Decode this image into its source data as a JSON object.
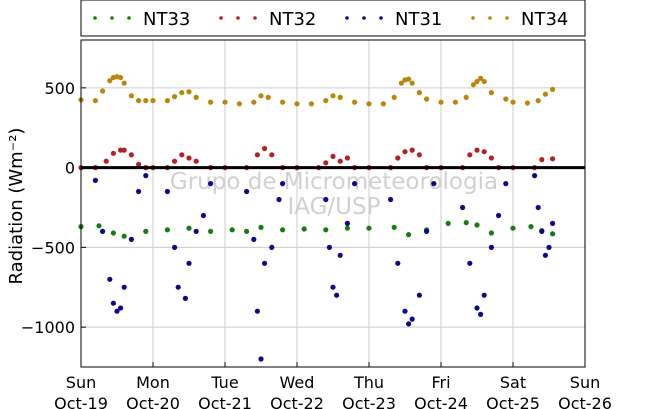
{
  "chart_data": {
    "type": "scatter",
    "title": "",
    "xlabel": "",
    "ylabel": "Radiation (Wm⁻²)",
    "xlim": [
      0,
      7
    ],
    "ylim": [
      -1250,
      800
    ],
    "grid": true,
    "legend_position": "top",
    "yticks": [
      {
        "value": 500,
        "label": "500"
      },
      {
        "value": 0,
        "label": "0"
      },
      {
        "value": -500,
        "label": "−500"
      },
      {
        "value": -1000,
        "label": "−1000"
      }
    ],
    "xticks": [
      {
        "value": 0,
        "day": "Sun",
        "date": "Oct-19"
      },
      {
        "value": 1,
        "day": "Mon",
        "date": "Oct-20"
      },
      {
        "value": 2,
        "day": "Tue",
        "date": "Oct-21"
      },
      {
        "value": 3,
        "day": "Wed",
        "date": "Oct-22"
      },
      {
        "value": 4,
        "day": "Thu",
        "date": "Oct-23"
      },
      {
        "value": 5,
        "day": "Fri",
        "date": "Oct-24"
      },
      {
        "value": 6,
        "day": "Sat",
        "date": "Oct-25"
      },
      {
        "value": 7,
        "day": "Sun",
        "date": "Oct-26"
      }
    ],
    "zero_line": 0,
    "watermark": [
      "Grupo de Micrometeorologia",
      "IAG/USP"
    ],
    "series": [
      {
        "name": "NT33",
        "color": "#1a7a14",
        "x": [
          0.0,
          0.25,
          0.45,
          0.6,
          0.9,
          1.2,
          1.5,
          1.8,
          2.1,
          2.3,
          2.5,
          2.8,
          3.1,
          3.4,
          3.7,
          4.0,
          4.35,
          4.55,
          4.8,
          5.1,
          5.35,
          5.5,
          5.7,
          6.0,
          6.25,
          6.4,
          6.55
        ],
        "y": [
          -370,
          -365,
          -410,
          -430,
          -400,
          -390,
          -380,
          -400,
          -390,
          -400,
          -375,
          -390,
          -385,
          -390,
          -380,
          -380,
          -375,
          -420,
          -390,
          -350,
          -345,
          -360,
          -410,
          -380,
          -370,
          -395,
          -415
        ]
      },
      {
        "name": "NT32",
        "color": "#b22222",
        "x": [
          0.0,
          0.2,
          0.35,
          0.45,
          0.55,
          0.6,
          0.7,
          0.8,
          0.9,
          1.0,
          1.2,
          1.3,
          1.4,
          1.5,
          1.6,
          1.8,
          2.0,
          2.3,
          2.45,
          2.55,
          2.65,
          2.8,
          3.0,
          3.3,
          3.4,
          3.5,
          3.6,
          3.7,
          3.8,
          4.0,
          4.3,
          4.4,
          4.5,
          4.6,
          4.7,
          4.8,
          5.0,
          5.3,
          5.4,
          5.5,
          5.6,
          5.7,
          5.8,
          6.0,
          6.3,
          6.4,
          6.55
        ],
        "y": [
          0,
          0,
          40,
          90,
          110,
          110,
          80,
          20,
          0,
          0,
          0,
          40,
          80,
          60,
          40,
          0,
          0,
          0,
          80,
          120,
          80,
          0,
          0,
          0,
          30,
          70,
          40,
          60,
          0,
          0,
          0,
          60,
          100,
          110,
          80,
          0,
          0,
          0,
          80,
          110,
          100,
          60,
          0,
          0,
          0,
          50,
          55
        ]
      },
      {
        "name": "NT31",
        "color": "#0a0a8a",
        "x": [
          0.2,
          0.3,
          0.4,
          0.45,
          0.5,
          0.55,
          0.6,
          0.7,
          0.8,
          0.9,
          1.2,
          1.3,
          1.35,
          1.45,
          1.5,
          1.6,
          1.7,
          1.8,
          2.3,
          2.4,
          2.45,
          2.5,
          2.55,
          2.65,
          2.75,
          2.8,
          3.4,
          3.45,
          3.5,
          3.55,
          3.6,
          3.7,
          3.8,
          4.3,
          4.4,
          4.5,
          4.55,
          4.6,
          4.7,
          4.8,
          4.9,
          5.3,
          5.4,
          5.5,
          5.55,
          5.6,
          5.7,
          5.8,
          5.9,
          6.3,
          6.35,
          6.4,
          6.45,
          6.5,
          6.55
        ],
        "y": [
          -80,
          -400,
          -700,
          -850,
          -900,
          -880,
          -750,
          -450,
          -150,
          -50,
          -150,
          -500,
          -750,
          -820,
          -600,
          -400,
          -300,
          -100,
          -150,
          -450,
          -900,
          -1200,
          -600,
          -500,
          -200,
          -100,
          -200,
          -500,
          -750,
          -800,
          -550,
          -350,
          -100,
          -200,
          -600,
          -900,
          -980,
          -950,
          -800,
          -400,
          -100,
          -250,
          -600,
          -880,
          -920,
          -800,
          -500,
          -300,
          -100,
          -50,
          -250,
          -400,
          -550,
          -500,
          -350
        ]
      },
      {
        "name": "NT34",
        "color": "#b8860b",
        "x": [
          0.0,
          0.2,
          0.3,
          0.4,
          0.45,
          0.5,
          0.55,
          0.6,
          0.7,
          0.8,
          0.9,
          1.0,
          1.2,
          1.3,
          1.4,
          1.5,
          1.6,
          1.8,
          2.0,
          2.2,
          2.4,
          2.5,
          2.6,
          2.8,
          3.0,
          3.2,
          3.4,
          3.5,
          3.6,
          3.8,
          4.0,
          4.2,
          4.35,
          4.45,
          4.5,
          4.55,
          4.6,
          4.7,
          4.8,
          5.0,
          5.2,
          5.35,
          5.45,
          5.5,
          5.55,
          5.6,
          5.7,
          5.9,
          6.0,
          6.2,
          6.35,
          6.45,
          6.55
        ],
        "y": [
          425,
          420,
          480,
          545,
          565,
          570,
          565,
          530,
          450,
          420,
          420,
          420,
          420,
          445,
          470,
          475,
          440,
          410,
          410,
          400,
          410,
          450,
          440,
          410,
          400,
          400,
          420,
          450,
          440,
          410,
          400,
          400,
          440,
          530,
          550,
          555,
          530,
          470,
          430,
          410,
          410,
          440,
          520,
          540,
          560,
          540,
          470,
          430,
          410,
          405,
          420,
          460,
          490
        ]
      }
    ]
  }
}
